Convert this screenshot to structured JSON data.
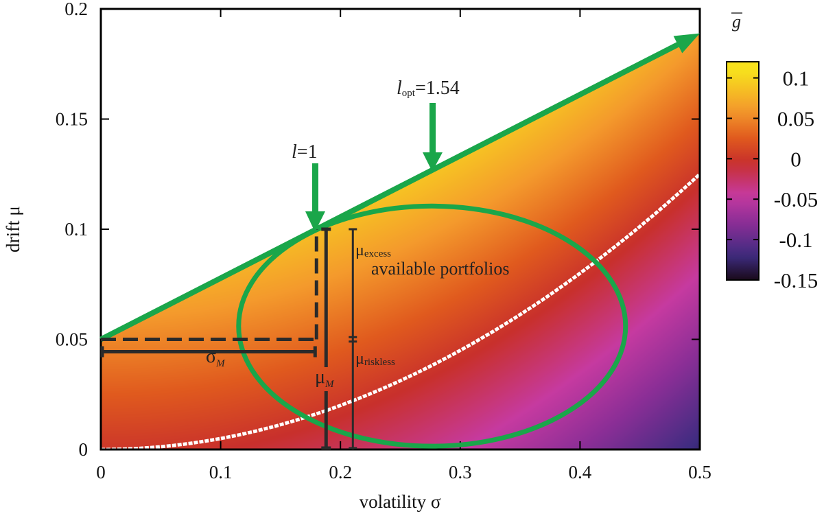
{
  "chart_data": {
    "type": "heatmap",
    "xlabel": "volatility σ",
    "ylabel": "drift μ",
    "xlim": [
      0,
      0.5
    ],
    "ylim": [
      0,
      0.2
    ],
    "x_ticks": [
      "0",
      "0.1",
      "0.2",
      "0.3",
      "0.4",
      "0.5"
    ],
    "y_ticks": [
      "0",
      "0.05",
      "0.1",
      "0.15",
      "0.2"
    ],
    "grid": false,
    "colorbar": {
      "label": "g",
      "range": [
        -0.15,
        0.12
      ],
      "ticks": [
        "0.1",
        "0.05",
        "0",
        "-0.05",
        "-0.1",
        "-0.15"
      ],
      "colors": [
        "#1a0a1a",
        "#3e2c80",
        "#8a2e96",
        "#c63aa0",
        "#c8302c",
        "#e05a1e",
        "#f49a2c",
        "#f8e41c"
      ]
    },
    "model": {
      "riskless_rate": 0.05,
      "market_volatility": 0.18,
      "market_drift": 0.1,
      "optimal_leverage": 1.54
    },
    "frontier_line": {
      "x": [
        0,
        0.5
      ],
      "y": [
        0.05,
        0.1889
      ]
    },
    "zero_contour": {
      "description_points_x": [
        0,
        0.1,
        0.2,
        0.3,
        0.4,
        0.5
      ],
      "y": [
        0,
        0.005,
        0.02,
        0.045,
        0.08,
        0.125
      ]
    },
    "ellipse": {
      "center": [
        0.2765,
        0.056
      ],
      "semi_axes": [
        0.1615,
        0.0545
      ]
    },
    "annotations": {
      "l1_label_var": "l",
      "l1_label_val": "=1",
      "lopt_label_var": "l",
      "lopt_label_sub": "opt",
      "lopt_label_val": "=1.54",
      "available": "available portfolios",
      "sigma_m_main": "σ",
      "sigma_m_sub": "M",
      "mu_m_main": "μ",
      "mu_m_sub": "M",
      "mu_excess_main": "μ",
      "mu_excess_sub": "excess",
      "mu_riskless_main": "μ",
      "mu_riskless_sub": "riskless"
    },
    "accent": "#1aa64a"
  }
}
